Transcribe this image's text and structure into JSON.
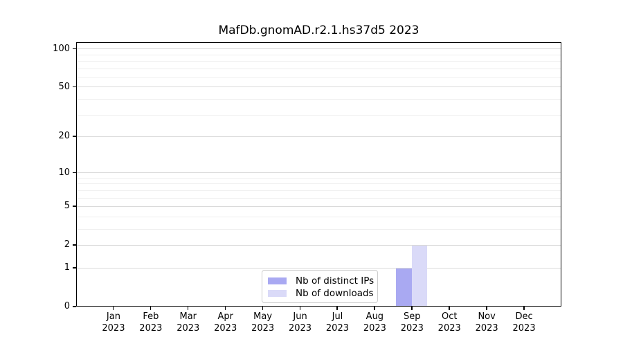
{
  "chart_data": {
    "type": "bar",
    "title": "MafDb.gnomAD.r2.1.hs37d5 2023",
    "categories": [
      "Jan",
      "Feb",
      "Mar",
      "Apr",
      "May",
      "Jun",
      "Jul",
      "Aug",
      "Sep",
      "Oct",
      "Nov",
      "Dec"
    ],
    "x_year": "2023",
    "series": [
      {
        "name": "Nb of distinct IPs",
        "color": "#a9a9f2",
        "values": [
          0,
          0,
          0,
          0,
          0,
          0,
          0,
          0,
          1,
          0,
          0,
          0
        ]
      },
      {
        "name": "Nb of downloads",
        "color": "#dadaf8",
        "values": [
          0,
          0,
          0,
          0,
          0,
          0,
          0,
          0,
          2,
          0,
          0,
          0
        ]
      }
    ],
    "yscale": "log1p",
    "ylim": [
      0,
      113
    ],
    "y_axis": {
      "ticks": [
        0,
        1,
        2,
        5,
        10,
        20,
        50,
        100
      ],
      "minor_gridlines": [
        3,
        4,
        6,
        7,
        8,
        9,
        30,
        40,
        60,
        70,
        80,
        90
      ],
      "major_gridlines": [
        1,
        2,
        5,
        10,
        20,
        50,
        100
      ]
    },
    "grid": true,
    "legend_position": "lower center",
    "colors": {
      "major_grid": "#d9d9d9",
      "minor_grid": "#efefef",
      "spine": "#000000",
      "text": "#000000"
    }
  }
}
